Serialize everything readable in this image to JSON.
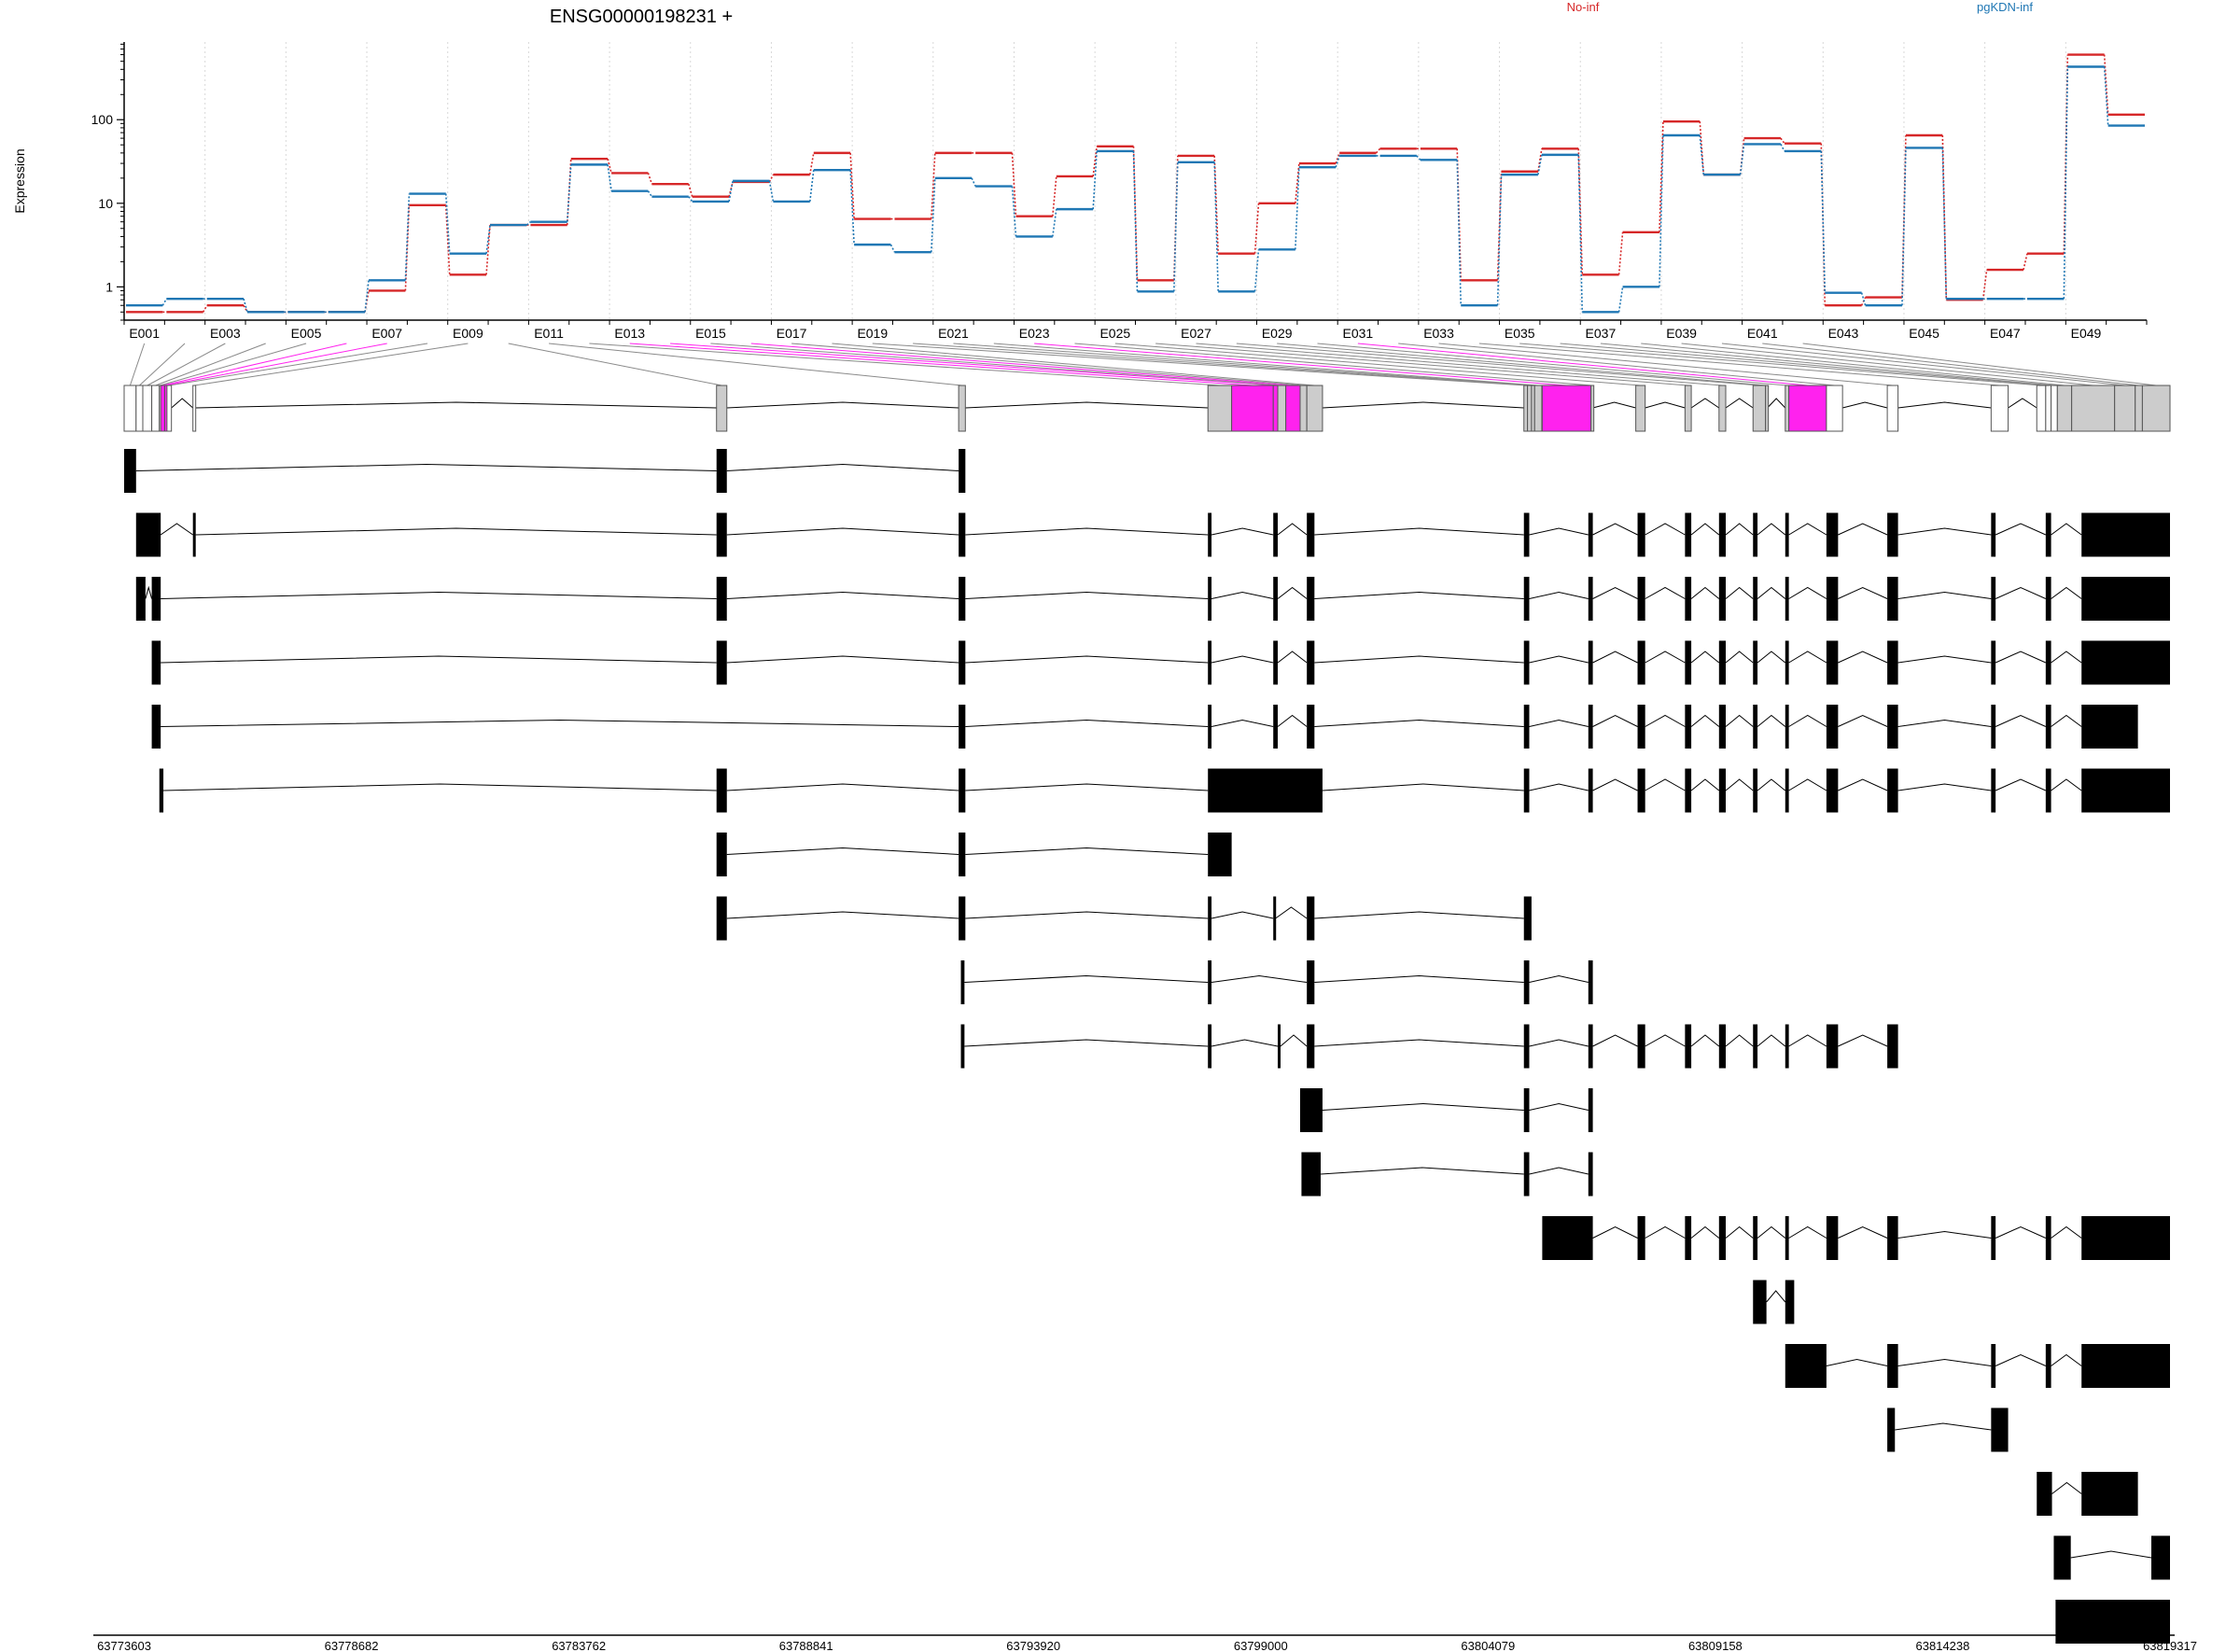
{
  "title": "ENSG00000198231 +",
  "legend": {
    "items": [
      {
        "label": "No-inf",
        "color": "#d62728"
      },
      {
        "label": "pgKDN-inf",
        "color": "#1f77b4"
      }
    ]
  },
  "highlight_color": "#ff22ee",
  "chart_data": {
    "type": "line",
    "ylabel": "Expression",
    "yscale": "log",
    "ylim": [
      0.4,
      850
    ],
    "yticks": [
      1,
      10,
      100
    ],
    "ytick_labels": [
      "1",
      "10",
      "100"
    ],
    "categories": [
      "E001",
      "E002",
      "E003",
      "E004",
      "E005",
      "E006",
      "E007",
      "E008",
      "E009",
      "E010",
      "E011",
      "E012",
      "E013",
      "E014",
      "E015",
      "E016",
      "E017",
      "E018",
      "E019",
      "E020",
      "E021",
      "E022",
      "E023",
      "E024",
      "E025",
      "E026",
      "E027",
      "E028",
      "E029",
      "E030",
      "E031",
      "E032",
      "E033",
      "E034",
      "E035",
      "E036",
      "E037",
      "E038",
      "E039",
      "E040",
      "E041",
      "E042",
      "E043",
      "E044",
      "E045",
      "E046",
      "E047",
      "E048",
      "E049",
      "E050"
    ],
    "series": [
      {
        "name": "No-inf",
        "color": "#d62728",
        "values": [
          0.5,
          0.5,
          0.6,
          0.5,
          0.5,
          0.5,
          0.9,
          9.5,
          1.4,
          5.5,
          5.5,
          34,
          23,
          17,
          12,
          18,
          22,
          40,
          6.5,
          6.5,
          40,
          40,
          7,
          21,
          48,
          1.2,
          37,
          2.5,
          10,
          30,
          40,
          45,
          45,
          1.2,
          24,
          45,
          1.4,
          4.5,
          95,
          22,
          60,
          52,
          0.6,
          0.75,
          65,
          0.7,
          1.6,
          2.5,
          600,
          115
        ]
      },
      {
        "name": "pgKDN-inf",
        "color": "#1f77b4",
        "values": [
          0.6,
          0.72,
          0.72,
          0.5,
          0.5,
          0.5,
          1.2,
          13,
          2.5,
          5.5,
          6,
          29,
          14,
          12,
          10.5,
          18.5,
          10.5,
          25,
          3.2,
          2.6,
          20,
          16,
          4,
          8.5,
          42,
          0.88,
          31,
          0.88,
          2.8,
          27,
          37,
          37,
          33,
          0.6,
          22,
          38,
          0.5,
          1,
          65,
          22,
          51,
          42,
          0.85,
          0.6,
          46,
          0.72,
          0.72,
          0.72,
          430,
          85
        ]
      }
    ],
    "xtick_labels": [
      "E001",
      "E003",
      "E005",
      "E007",
      "E009",
      "E011",
      "E013",
      "E015",
      "E017",
      "E019",
      "E021",
      "E023",
      "E025",
      "E027",
      "E029",
      "E031",
      "E033",
      "E035",
      "E037",
      "E039",
      "E041",
      "E043",
      "E045",
      "E047",
      "E049"
    ],
    "genome_axis": {
      "range": [
        63773603,
        63819317
      ],
      "tick_values": [
        63773603,
        63778682,
        63783762,
        63788841,
        63793920,
        63799000,
        63804079,
        63809158,
        63814238,
        63819317
      ],
      "tick_labels": [
        "63773603",
        "63778682",
        "63783762",
        "63788841",
        "63793920",
        "63799000",
        "63804079",
        "63809158",
        "63814238",
        "63819317"
      ]
    },
    "exon_model": {
      "exons": [
        [
          63773603,
          63773870
        ],
        [
          63773870,
          63774020
        ],
        [
          63774020,
          63774220
        ],
        [
          63774220,
          63774390
        ],
        [
          63774390,
          63774420
        ],
        [
          63774420,
          63774510
        ],
        [
          63774510,
          63774560
        ],
        [
          63774560,
          63774660
        ],
        [
          63775140,
          63775200
        ],
        [
          63786840,
          63787070
        ],
        [
          63792250,
          63792400
        ],
        [
          63797820,
          63798350
        ],
        [
          63798350,
          63799280
        ],
        [
          63799280,
          63799380
        ],
        [
          63799380,
          63799560
        ],
        [
          63799560,
          63799880
        ],
        [
          63799880,
          63800030
        ],
        [
          63800030,
          63800380
        ],
        [
          63804880,
          63804960
        ],
        [
          63804960,
          63805050
        ],
        [
          63805050,
          63805120
        ],
        [
          63805120,
          63805280
        ],
        [
          63805290,
          63806380
        ],
        [
          63806380,
          63806420
        ],
        [
          63807380,
          63807590
        ],
        [
          63808480,
          63808620
        ],
        [
          63809240,
          63809390
        ],
        [
          63810000,
          63810280
        ],
        [
          63810280,
          63810320
        ],
        [
          63810720,
          63810800
        ],
        [
          63810800,
          63811640
        ],
        [
          63811640,
          63812000
        ],
        [
          63813000,
          63813240
        ],
        [
          63815320,
          63815700
        ],
        [
          63816340,
          63816540
        ],
        [
          63816540,
          63816660
        ],
        [
          63816660,
          63816800
        ],
        [
          63816800,
          63817120
        ],
        [
          63817120,
          63818080
        ],
        [
          63818080,
          63818540
        ],
        [
          63818540,
          63818700
        ],
        [
          63818700,
          63819317
        ]
      ],
      "highlighted": [
        5,
        6,
        12,
        13,
        15,
        22,
        30
      ]
    },
    "transcripts": [
      [
        [
          63773603,
          63773870
        ],
        [
          63786840,
          63787070
        ],
        [
          63792250,
          63792400
        ]
      ],
      [
        [
          63773870,
          63774420
        ],
        [
          63775140,
          63775200
        ],
        [
          63786840,
          63787070
        ],
        [
          63792250,
          63792400
        ],
        [
          63797820,
          63797900
        ],
        [
          63799280,
          63799380
        ],
        [
          63800030,
          63800200
        ],
        [
          63804880,
          63805000
        ],
        [
          63806320,
          63806420
        ],
        [
          63807420,
          63807590
        ],
        [
          63808480,
          63808620
        ],
        [
          63809240,
          63809390
        ],
        [
          63810000,
          63810100
        ],
        [
          63810720,
          63810800
        ],
        [
          63811640,
          63811900
        ],
        [
          63813000,
          63813240
        ],
        [
          63815320,
          63815420
        ],
        [
          63816540,
          63816660
        ],
        [
          63817340,
          63819317
        ]
      ],
      [
        [
          63773870,
          63774080
        ],
        [
          63774220,
          63774420
        ],
        [
          63786840,
          63787070
        ],
        [
          63792250,
          63792400
        ],
        [
          63797820,
          63797900
        ],
        [
          63799280,
          63799380
        ],
        [
          63800030,
          63800200
        ],
        [
          63804880,
          63805000
        ],
        [
          63806320,
          63806420
        ],
        [
          63807420,
          63807590
        ],
        [
          63808480,
          63808620
        ],
        [
          63809240,
          63809390
        ],
        [
          63810000,
          63810100
        ],
        [
          63810720,
          63810800
        ],
        [
          63811640,
          63811900
        ],
        [
          63813000,
          63813240
        ],
        [
          63815320,
          63815420
        ],
        [
          63816540,
          63816660
        ],
        [
          63817340,
          63819317
        ]
      ],
      [
        [
          63774220,
          63774420
        ],
        [
          63786840,
          63787070
        ],
        [
          63792250,
          63792400
        ],
        [
          63797820,
          63797900
        ],
        [
          63799280,
          63799380
        ],
        [
          63800030,
          63800200
        ],
        [
          63804880,
          63805000
        ],
        [
          63806320,
          63806420
        ],
        [
          63807420,
          63807590
        ],
        [
          63808480,
          63808620
        ],
        [
          63809240,
          63809390
        ],
        [
          63810000,
          63810100
        ],
        [
          63810720,
          63810800
        ],
        [
          63811640,
          63811900
        ],
        [
          63813000,
          63813240
        ],
        [
          63815320,
          63815420
        ],
        [
          63816540,
          63816660
        ],
        [
          63817340,
          63819317
        ]
      ],
      [
        [
          63774220,
          63774420
        ],
        [
          63792250,
          63792400
        ],
        [
          63797820,
          63797900
        ],
        [
          63799280,
          63799380
        ],
        [
          63800030,
          63800200
        ],
        [
          63804880,
          63805000
        ],
        [
          63806320,
          63806420
        ],
        [
          63807420,
          63807590
        ],
        [
          63808480,
          63808620
        ],
        [
          63809240,
          63809390
        ],
        [
          63810000,
          63810100
        ],
        [
          63810720,
          63810800
        ],
        [
          63811640,
          63811900
        ],
        [
          63813000,
          63813240
        ],
        [
          63815320,
          63815420
        ],
        [
          63816540,
          63816660
        ],
        [
          63817340,
          63818600
        ]
      ],
      [
        [
          63774390,
          63774480
        ],
        [
          63786840,
          63787070
        ],
        [
          63792250,
          63792400
        ],
        [
          63797820,
          63800380
        ],
        [
          63804880,
          63805000
        ],
        [
          63806320,
          63806420
        ],
        [
          63807420,
          63807590
        ],
        [
          63808480,
          63808620
        ],
        [
          63809240,
          63809390
        ],
        [
          63810000,
          63810100
        ],
        [
          63810720,
          63810800
        ],
        [
          63811640,
          63811900
        ],
        [
          63813000,
          63813240
        ],
        [
          63815320,
          63815420
        ],
        [
          63816540,
          63816660
        ],
        [
          63817340,
          63819317
        ]
      ],
      [
        [
          63786840,
          63787070
        ],
        [
          63792250,
          63792400
        ],
        [
          63797820,
          63798350
        ]
      ],
      [
        [
          63786840,
          63787070
        ],
        [
          63792250,
          63792400
        ],
        [
          63797820,
          63797900
        ],
        [
          63799280,
          63799330
        ],
        [
          63800030,
          63800200
        ],
        [
          63804880,
          63805050
        ]
      ],
      [
        [
          63792300,
          63792380
        ],
        [
          63797820,
          63797900
        ],
        [
          63800030,
          63800200
        ],
        [
          63804880,
          63805000
        ],
        [
          63806320,
          63806420
        ]
      ],
      [
        [
          63792300,
          63792380
        ],
        [
          63797820,
          63797900
        ],
        [
          63799380,
          63799440
        ],
        [
          63800030,
          63800200
        ],
        [
          63804880,
          63805000
        ],
        [
          63806320,
          63806420
        ],
        [
          63807420,
          63807590
        ],
        [
          63808480,
          63808620
        ],
        [
          63809240,
          63809390
        ],
        [
          63810000,
          63810100
        ],
        [
          63810720,
          63810800
        ],
        [
          63811640,
          63811900
        ],
        [
          63813000,
          63813240
        ]
      ],
      [
        [
          63799880,
          63800380
        ],
        [
          63804880,
          63805000
        ],
        [
          63806320,
          63806420
        ]
      ],
      [
        [
          63799910,
          63800340
        ],
        [
          63804880,
          63805000
        ],
        [
          63806320,
          63806420
        ]
      ],
      [
        [
          63805290,
          63806420
        ],
        [
          63807420,
          63807590
        ],
        [
          63808480,
          63808620
        ],
        [
          63809240,
          63809390
        ],
        [
          63810000,
          63810100
        ],
        [
          63810720,
          63810800
        ],
        [
          63811640,
          63811900
        ],
        [
          63813000,
          63813240
        ],
        [
          63815320,
          63815420
        ],
        [
          63816540,
          63816660
        ],
        [
          63817340,
          63819317
        ]
      ],
      [
        [
          63810000,
          63810300
        ],
        [
          63810720,
          63810920
        ]
      ],
      [
        [
          63810720,
          63811640
        ],
        [
          63813000,
          63813240
        ],
        [
          63815320,
          63815420
        ],
        [
          63816540,
          63816660
        ],
        [
          63817340,
          63819317
        ]
      ],
      [
        [
          63813000,
          63813170
        ],
        [
          63815320,
          63815700
        ]
      ],
      [
        [
          63816340,
          63816680
        ],
        [
          63817340,
          63818600
        ]
      ],
      [
        [
          63816720,
          63817100
        ],
        [
          63818900,
          63819317
        ]
      ],
      [
        [
          63816760,
          63819317
        ]
      ]
    ]
  }
}
